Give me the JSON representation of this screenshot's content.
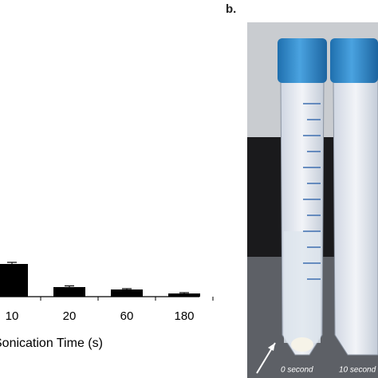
{
  "chart_data": {
    "type": "bar",
    "x_label": "Sonication Time (s)",
    "categories": [
      "10",
      "20",
      "60",
      "180"
    ],
    "values": [
      41,
      12,
      9,
      4
    ],
    "errors": [
      2,
      1.5,
      1,
      1
    ],
    "color": "#000000",
    "ylim": [
      0,
      100
    ]
  },
  "photo": {
    "panel_label": "b.",
    "captions": [
      "0 second",
      "10 second"
    ]
  }
}
